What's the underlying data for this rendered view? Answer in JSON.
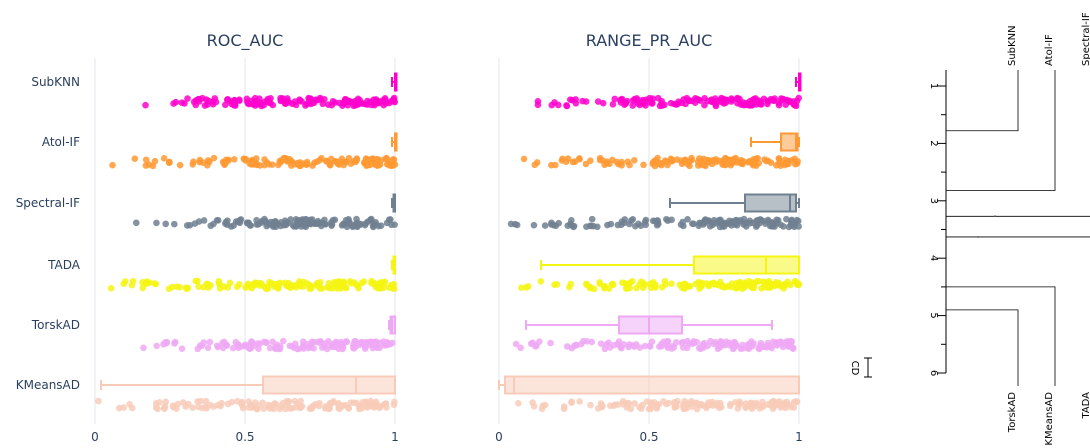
{
  "chart_data": [
    {
      "type": "box",
      "title": "ROC_AUC",
      "categories": [
        "SubKNN",
        "Atol-IF",
        "Spectral-IF",
        "TADA",
        "TorskAD",
        "KMeansAD"
      ],
      "xlim": [
        0,
        1
      ],
      "xticks": [
        0,
        0.5,
        1
      ],
      "xticklabels": [
        "0",
        "0.5",
        "1"
      ],
      "grid": true,
      "points_shown": true,
      "series": [
        {
          "name": "SubKNN",
          "color": "#ff00cc",
          "box": {
            "min": 0.99,
            "q1": 1.0,
            "median": 1.0,
            "q3": 1.0,
            "max": 1.0
          },
          "points": [
            0.08,
            0.2,
            0.35,
            0.45,
            0.55,
            0.65,
            0.8,
            0.9,
            0.95,
            1.0
          ]
        },
        {
          "name": "Atol-IF",
          "color": "#ff9933",
          "box": {
            "min": 0.99,
            "q1": 1.0,
            "median": 1.0,
            "q3": 1.0,
            "max": 1.0
          },
          "points": [
            0.03,
            0.15,
            0.3,
            0.45,
            0.6,
            0.75,
            0.9,
            1.0
          ]
        },
        {
          "name": "Spectral-IF",
          "color": "#708090",
          "box": {
            "min": 0.99,
            "q1": 0.995,
            "median": 1.0,
            "q3": 1.0,
            "max": 1.0
          },
          "points": [
            0.04,
            0.18,
            0.35,
            0.5,
            0.65,
            0.8,
            0.95,
            1.0
          ]
        },
        {
          "name": "TADA",
          "color": "#f5f512",
          "box": {
            "min": 0.99,
            "q1": 0.995,
            "median": 1.0,
            "q3": 1.0,
            "max": 1.0
          },
          "points": [
            0.0,
            0.15,
            0.3,
            0.5,
            0.7,
            0.85,
            1.0
          ]
        },
        {
          "name": "TorskAD",
          "color": "#eea8f5",
          "box": {
            "min": 0.98,
            "q1": 0.985,
            "median": 0.99,
            "q3": 1.0,
            "max": 1.0
          },
          "points": [
            0.12,
            0.25,
            0.4,
            0.55,
            0.7,
            0.85,
            1.0
          ]
        },
        {
          "name": "KMeansAD",
          "color": "#f8cbb8",
          "box": {
            "min": 0.02,
            "q1": 0.56,
            "median": 0.87,
            "q3": 1.0,
            "max": 1.0
          },
          "points": [
            0.0,
            0.1,
            0.25,
            0.45,
            0.6,
            0.8,
            1.0
          ]
        }
      ]
    },
    {
      "type": "box",
      "title": "RANGE_PR_AUC",
      "categories": [
        "SubKNN",
        "Atol-IF",
        "Spectral-IF",
        "TADA",
        "TorskAD",
        "KMeansAD"
      ],
      "xlim": [
        0,
        1
      ],
      "xticks": [
        0,
        0.5,
        1
      ],
      "xticklabels": [
        "0",
        "0.5",
        "1"
      ],
      "grid": true,
      "points_shown": true,
      "series": [
        {
          "name": "SubKNN",
          "color": "#ff00cc",
          "box": {
            "min": 0.99,
            "q1": 1.0,
            "median": 1.0,
            "q3": 1.0,
            "max": 1.0
          },
          "points": [
            0.0,
            0.1,
            0.3,
            0.5,
            0.7,
            0.9,
            1.0
          ]
        },
        {
          "name": "Atol-IF",
          "color": "#ff9933",
          "box": {
            "min": 0.84,
            "q1": 0.94,
            "median": 0.99,
            "q3": 0.995,
            "max": 1.0
          },
          "points": [
            0.0,
            0.1,
            0.25,
            0.45,
            0.65,
            0.85,
            1.0
          ]
        },
        {
          "name": "Spectral-IF",
          "color": "#708090",
          "box": {
            "min": 0.57,
            "q1": 0.82,
            "median": 0.97,
            "q3": 0.99,
            "max": 1.0
          },
          "points": [
            0.0,
            0.15,
            0.35,
            0.55,
            0.75,
            0.9,
            1.0
          ]
        },
        {
          "name": "TADA",
          "color": "#f5f512",
          "box": {
            "min": 0.14,
            "q1": 0.65,
            "median": 0.89,
            "q3": 1.0,
            "max": 1.0
          },
          "points": [
            0.0,
            0.2,
            0.4,
            0.6,
            0.8,
            1.0
          ]
        },
        {
          "name": "TorskAD",
          "color": "#eea8f5",
          "box": {
            "min": 0.09,
            "q1": 0.4,
            "median": 0.5,
            "q3": 0.61,
            "max": 0.91
          },
          "points": [
            0.0,
            0.2,
            0.4,
            0.6,
            0.8,
            1.0
          ]
        },
        {
          "name": "KMeansAD",
          "color": "#f8cbb8",
          "box": {
            "min": 0.0,
            "q1": 0.02,
            "median": 0.05,
            "q3": 1.0,
            "max": 1.0
          },
          "points": [
            0.0,
            0.2,
            0.4,
            0.6,
            0.8,
            1.0
          ]
        }
      ]
    },
    {
      "type": "critical_difference",
      "axis_range": [
        1,
        6
      ],
      "ticks": [
        "1",
        "2",
        "3",
        "4",
        "5",
        "6"
      ],
      "cd_label": "CD",
      "methods_top": [
        {
          "name": "SubKNN",
          "rank": 1.78
        },
        {
          "name": "Atol-IF",
          "rank": 2.82
        },
        {
          "name": "Spectral-IF",
          "rank": 3.27
        }
      ],
      "methods_bottom": [
        {
          "name": "TorskAD",
          "rank": 4.9
        },
        {
          "name": "KMeansAD",
          "rank": 4.5
        },
        {
          "name": "TADA",
          "rank": 3.63
        }
      ]
    }
  ]
}
